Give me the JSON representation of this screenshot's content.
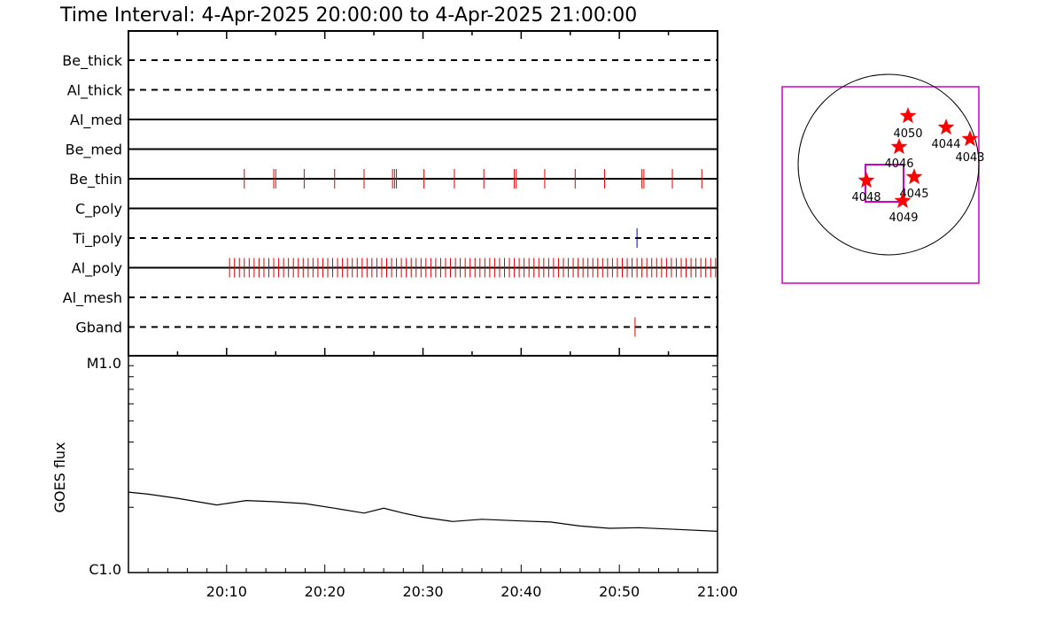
{
  "title": "Time Interval:  4-Apr-2025 20:00:00 to  4-Apr-2025 21:00:00",
  "colors": {
    "event_red": "#dd0000",
    "event_blue": "#0000cc",
    "fov": "#cc00cc",
    "star": "#ff0000"
  },
  "chart_data": [
    {
      "type": "event-timeline",
      "x_range": [
        "20:00",
        "21:00"
      ],
      "channels": [
        {
          "name": "Be_thick",
          "style": "dashed",
          "events": []
        },
        {
          "name": "Al_thick",
          "style": "dashed",
          "events": []
        },
        {
          "name": "Al_med",
          "style": "solid",
          "events": []
        },
        {
          "name": "Be_med",
          "style": "solid",
          "events": []
        },
        {
          "name": "Be_thin",
          "style": "solid",
          "color": "#dd0000",
          "events": [
            "20:11.8",
            "20:14.8",
            "20:15.0",
            "20:17.9",
            "20:21.0",
            "20:24.0",
            "20:26.9",
            "20:27.1",
            "20:27.3",
            "20:30.1",
            "20:33.2",
            "20:36.2",
            "20:39.3",
            "20:39.5",
            "20:42.4",
            "20:45.5",
            "20:48.5",
            "20:52.3",
            "20:52.5",
            "20:55.4",
            "20:58.4"
          ]
        },
        {
          "name": "C_poly",
          "style": "solid",
          "events": []
        },
        {
          "name": "Ti_poly",
          "style": "dashed",
          "color": "#0000cc",
          "events": [
            "20:51.8"
          ]
        },
        {
          "name": "Al_poly",
          "style": "solid",
          "color": "#dd0000",
          "event_range": [
            "20:10.3",
            "21:00"
          ],
          "event_spacing_min": 0.5,
          "events": []
        },
        {
          "name": "Al_mesh",
          "style": "dashed",
          "events": []
        },
        {
          "name": "Gband",
          "style": "dashed",
          "color": "#dd0000",
          "events": [
            "20:51.6"
          ]
        }
      ]
    },
    {
      "type": "line",
      "ylabel": "GOES flux",
      "y_scale": "log",
      "y_ticks": [
        "M1.0",
        "C1.0"
      ],
      "y_range": [
        1e-06,
        1e-05
      ],
      "x_ticks": [
        "20:10",
        "20:20",
        "20:30",
        "20:40",
        "20:50",
        "21:00"
      ],
      "x": [
        "20:00",
        "20:02",
        "20:05",
        "20:09",
        "20:12",
        "20:15",
        "20:18",
        "20:21",
        "20:24",
        "20:26",
        "20:28",
        "20:30",
        "20:33",
        "20:36",
        "20:40",
        "20:43",
        "20:46",
        "20:49",
        "20:52",
        "20:56",
        "21:00"
      ],
      "y": [
        2.35e-06,
        2.3e-06,
        2.2e-06,
        2.05e-06,
        2.15e-06,
        2.12e-06,
        2.08e-06,
        1.98e-06,
        1.88e-06,
        1.98e-06,
        1.88e-06,
        1.8e-06,
        1.72e-06,
        1.76e-06,
        1.73e-06,
        1.71e-06,
        1.64e-06,
        1.6e-06,
        1.61e-06,
        1.58e-06,
        1.55e-06
      ]
    }
  ],
  "sun_map": {
    "regions": [
      "4050",
      "4044",
      "4043",
      "4046",
      "4048",
      "4045",
      "4049"
    ]
  }
}
